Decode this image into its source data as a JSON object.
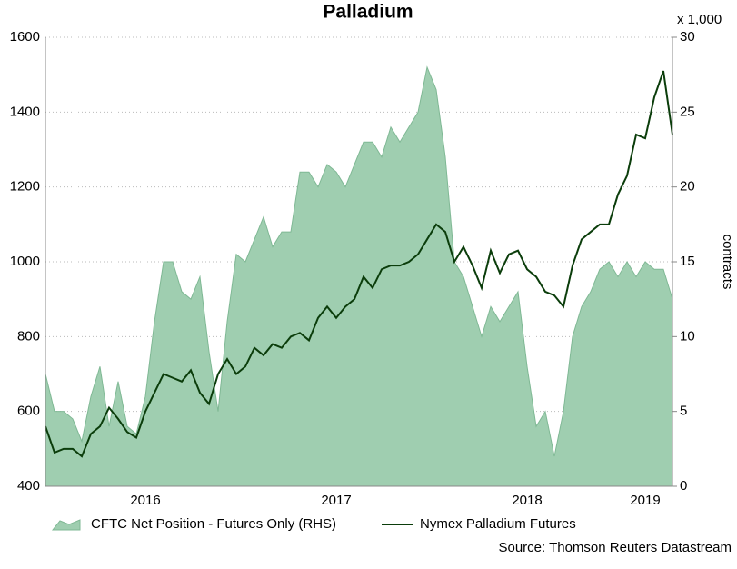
{
  "chart_data": {
    "type": "line",
    "title": "Palladium",
    "y2_unit_label": "x 1,000",
    "y2_label": "contracts",
    "source": "Source: Thomson Reuters Datastream",
    "categories": [
      null,
      null,
      null,
      null,
      null,
      null,
      null,
      null,
      null,
      null,
      null,
      "2016",
      null,
      null,
      null,
      null,
      null,
      null,
      null,
      null,
      null,
      null,
      null,
      null,
      null,
      null,
      null,
      null,
      null,
      null,
      null,
      null,
      "2017",
      null,
      null,
      null,
      null,
      null,
      null,
      null,
      null,
      null,
      null,
      null,
      null,
      null,
      null,
      null,
      null,
      null,
      null,
      null,
      null,
      "2018",
      null,
      null,
      null,
      null,
      null,
      null,
      null,
      null,
      null,
      null,
      null,
      null,
      "2019",
      null,
      null,
      null
    ],
    "series": [
      {
        "name": "CFTC Net Position - Futures Only (RHS)",
        "color": "#9fceb0",
        "axis": "y2",
        "type": "area",
        "values": [
          7.5,
          5,
          5,
          4.5,
          3,
          6,
          8,
          4,
          7,
          4,
          3.5,
          6,
          11,
          15,
          15,
          13,
          12.5,
          14,
          9,
          5,
          11,
          15.5,
          15,
          16.5,
          18,
          16,
          17,
          17,
          21,
          21,
          20,
          21.5,
          21,
          20,
          21.5,
          23,
          23,
          22,
          24,
          23,
          24,
          25,
          28,
          26.5,
          22,
          15,
          14,
          12,
          10,
          12,
          11,
          12,
          13,
          8,
          4,
          5,
          2,
          5,
          10,
          12,
          13,
          14.5,
          15,
          14,
          15,
          14,
          15,
          14.5,
          14.5,
          12.5
        ]
      },
      {
        "name": "Nymex Palladium Futures",
        "color": "#0b3d0b",
        "type": "line",
        "values": [
          560,
          490,
          500,
          500,
          480,
          540,
          560,
          610,
          580,
          545,
          530,
          600,
          650,
          700,
          690,
          680,
          710,
          650,
          620,
          700,
          740,
          700,
          720,
          770,
          750,
          780,
          770,
          800,
          810,
          790,
          850,
          880,
          850,
          880,
          900,
          960,
          930,
          980,
          990,
          990,
          1000,
          1020,
          1060,
          1100,
          1080,
          1000,
          1040,
          990,
          930,
          1030,
          970,
          1020,
          1030,
          980,
          960,
          920,
          910,
          880,
          990,
          1060,
          1080,
          1100,
          1100,
          1180,
          1230,
          1340,
          1330,
          1440,
          1510,
          1340
        ]
      }
    ],
    "ylim": [
      400,
      1600
    ],
    "yticks": [
      400,
      600,
      800,
      1000,
      1200,
      1400,
      1600
    ],
    "y2lim": [
      0,
      30
    ],
    "y2ticks": [
      0,
      5,
      10,
      15,
      20,
      25,
      30
    ],
    "grid": true
  }
}
